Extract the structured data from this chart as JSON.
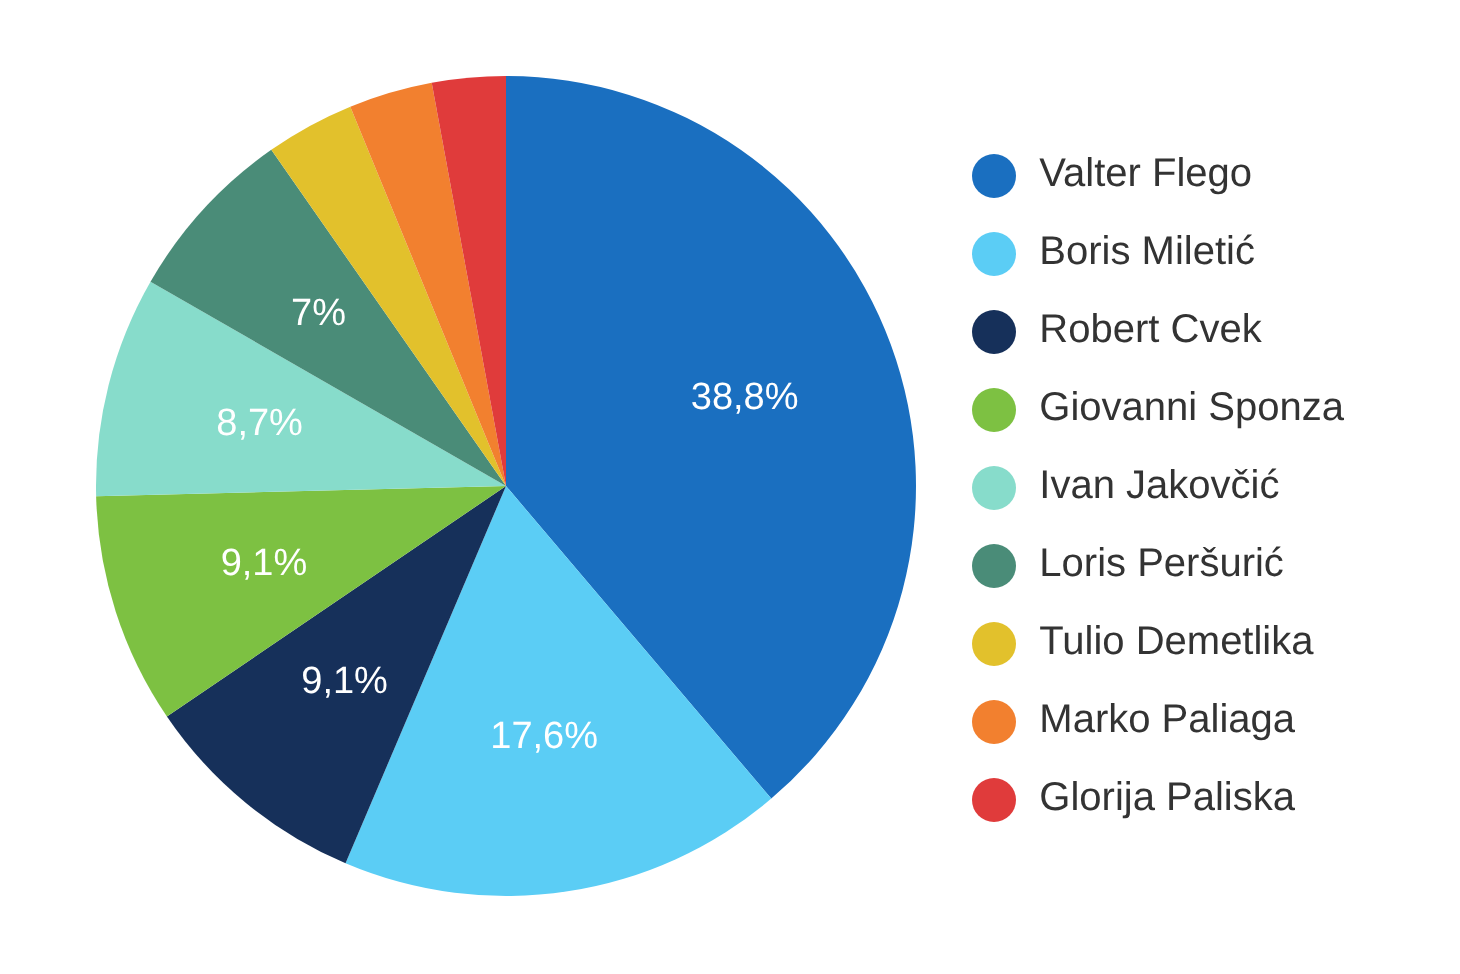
{
  "chart_data": {
    "type": "pie",
    "categories": [
      "Valter Flego",
      "Boris Miletić",
      "Robert Cvek",
      "Giovanni Sponza",
      "Ivan Jakovčić",
      "Loris Peršurić",
      "Tulio Demetlika",
      "Marko Paliaga",
      "Glorija Paliska"
    ],
    "values": [
      38.8,
      17.6,
      9.1,
      9.1,
      8.7,
      7,
      3.5,
      3.3,
      2.9
    ],
    "value_labels": [
      "38,8%",
      "17,6%",
      "9,1%",
      "9,1%",
      "8,7%",
      "7%",
      null,
      null,
      null
    ],
    "colors": [
      "#1a6fc0",
      "#5bcdf5",
      "#16305a",
      "#7dc142",
      "#87dccb",
      "#4a8c78",
      "#e2c12c",
      "#f2802f",
      "#e03b3b"
    ],
    "legend": "right"
  }
}
